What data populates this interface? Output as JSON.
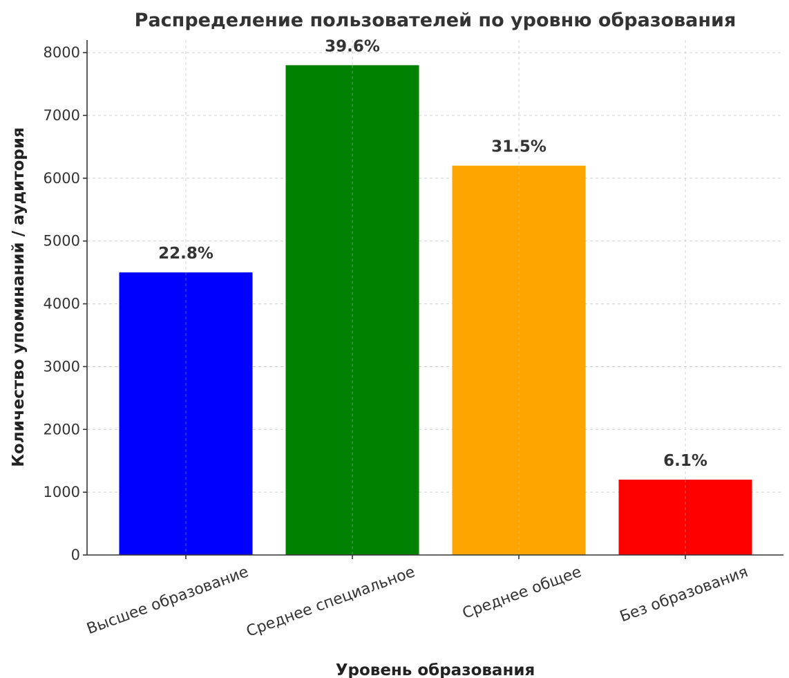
{
  "chart_data": {
    "type": "bar",
    "title": "Распределение пользователей по уровню образования",
    "xlabel": "Уровень образования",
    "ylabel": "Количество упоминаний / аудитория",
    "categories": [
      "Высшее образование",
      "Среднее специальное",
      "Среднее общее",
      "Без образования"
    ],
    "values": [
      4500,
      7800,
      6200,
      1200
    ],
    "data_labels": [
      "22.8%",
      "39.6%",
      "31.5%",
      "6.1%"
    ],
    "colors": [
      "#0000ff",
      "#008000",
      "#ffa500",
      "#ff0000"
    ],
    "yticks": [
      "0",
      "1000",
      "2000",
      "3000",
      "4000",
      "5000",
      "6000",
      "7000",
      "8000"
    ],
    "ylim": [
      0,
      8200
    ],
    "grid": true
  }
}
